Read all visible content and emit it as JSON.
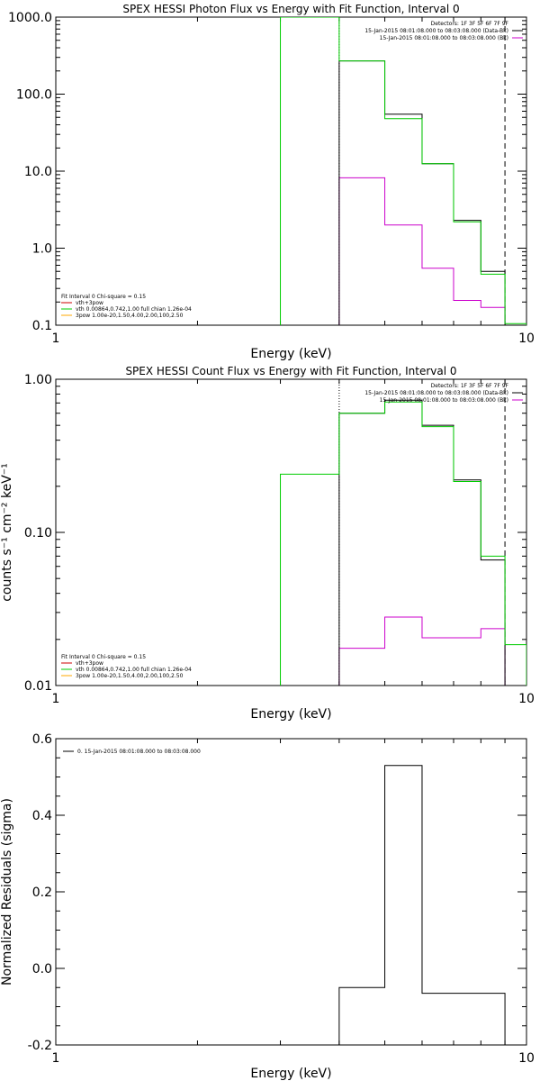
{
  "chart_data": [
    {
      "type": "line",
      "title": "SPEX HESSI Photon Flux vs Energy with Fit Function, Interval 0",
      "xlabel": "Energy (keV)",
      "ylabel": "",
      "x_scale": "log",
      "y_scale": "log",
      "xlim": [
        1,
        10
      ],
      "ylim": [
        0.1,
        1000
      ],
      "x_ticks": [
        {
          "value": 1,
          "label": "1"
        },
        {
          "value": 10,
          "label": "10"
        }
      ],
      "y_ticks": [
        {
          "value": 0.1,
          "label": "0.1"
        },
        {
          "value": 1,
          "label": "1.0"
        },
        {
          "value": 10,
          "label": "10.0"
        },
        {
          "value": 100,
          "label": "100.0"
        },
        {
          "value": 1000,
          "label": "1000.0"
        }
      ],
      "header": [
        "Detectors: 1F 3F 5F 6F 7F 9F",
        "15-Jan-2015 08:01:08.000 to 08:03:08.000 (Data-Bk)",
        "15-Jan-2015 08:01:08.000 to 08:03:08.000 (Bk)"
      ],
      "legend": [
        "Fit Interval 0   Chi-square = 0.15",
        "vth+3pow",
        "vth 0.00864,0.742,1.00   full chian 1.26e-04",
        "3pow 1.00e-20,1.50,4.00,2.00,100,2.50"
      ],
      "colors": {
        "data": "#000000",
        "background": "#cc00cc",
        "fit": "#00cc00",
        "component": "#ffaa00",
        "red": "#cc0000"
      },
      "edges": [
        3,
        4,
        5,
        6,
        7,
        8,
        9,
        10
      ],
      "series": [
        {
          "values": [
            null,
            270,
            55,
            12.5,
            2.3,
            0.5,
            null
          ]
        },
        {
          "values": [
            null,
            8.2,
            2.0,
            0.55,
            0.21,
            0.17,
            null
          ]
        },
        {
          "values": [
            1000,
            270,
            48,
            12.5,
            2.2,
            0.46,
            0.105
          ]
        }
      ],
      "vlines": [
        {
          "x": 4,
          "style": "dotted"
        },
        {
          "x": 9,
          "style": "dashed"
        }
      ]
    },
    {
      "type": "line",
      "title": "SPEX HESSI Count Flux vs Energy with Fit Function, Interval 0",
      "xlabel": "Energy (keV)",
      "ylabel": "counts s⁻¹ cm⁻² keV⁻¹",
      "x_scale": "log",
      "y_scale": "log",
      "xlim": [
        1,
        10
      ],
      "ylim": [
        0.01,
        1
      ],
      "x_ticks": [
        {
          "value": 1,
          "label": "1"
        },
        {
          "value": 10,
          "label": "10"
        }
      ],
      "y_ticks": [
        {
          "value": 0.01,
          "label": "0.01"
        },
        {
          "value": 0.1,
          "label": "0.10"
        },
        {
          "value": 1,
          "label": "1.00"
        }
      ],
      "header": [
        "Detectors: 1F 3F 5F 6F 7F 9F",
        "15-Jan-2015 08:01:08.000 to 08:03:08.000 (Data-Bk)",
        "15-Jan-2015 08:01:08.000 to 08:03:08.000 (Bk)"
      ],
      "legend": [
        "Fit Interval 0   Chi-square = 0.15",
        "vth+3pow",
        "vth 0.00864,0.742,1.00   full chian 1.26e-04",
        "3pow 1.00e-20,1.50,4.00,2.00,100,2.50"
      ],
      "colors": {
        "data": "#000000",
        "background": "#cc00cc",
        "fit": "#00cc00",
        "component": "#ffaa00",
        "red": "#cc0000"
      },
      "edges": [
        3,
        4,
        5,
        6,
        7,
        8,
        9,
        10
      ],
      "series": [
        {
          "values": [
            null,
            0.6,
            0.73,
            0.5,
            0.22,
            0.066,
            null
          ]
        },
        {
          "values": [
            null,
            0.0175,
            0.028,
            0.0205,
            0.0205,
            0.0235,
            null
          ]
        },
        {
          "values": [
            0.24,
            0.6,
            0.71,
            0.49,
            0.215,
            0.07,
            0.0185
          ]
        }
      ],
      "vlines": [
        {
          "x": 4,
          "style": "dotted"
        },
        {
          "x": 9,
          "style": "dashed"
        }
      ]
    },
    {
      "type": "line",
      "title": "",
      "xlabel": "Energy (keV)",
      "ylabel": "Normalized Residuals (sigma)",
      "x_scale": "log",
      "y_scale": "linear",
      "xlim": [
        1,
        10
      ],
      "ylim": [
        -0.2,
        0.6
      ],
      "x_ticks": [
        {
          "value": 1,
          "label": "1"
        },
        {
          "value": 10,
          "label": "10"
        }
      ],
      "y_ticks": [
        {
          "value": -0.2,
          "label": "-0.2"
        },
        {
          "value": 0.0,
          "label": "0.0"
        },
        {
          "value": 0.2,
          "label": "0.2"
        },
        {
          "value": 0.4,
          "label": "0.4"
        },
        {
          "value": 0.6,
          "label": "0.6"
        }
      ],
      "header": [],
      "legend": [
        "0. 15-Jan-2015 08:01:08.000 to 08:03:08.000"
      ],
      "colors": {
        "data": "#000000"
      },
      "edges": [
        4,
        5,
        6,
        9
      ],
      "series": [
        {
          "values": [
            -0.05,
            0.53,
            -0.065
          ]
        }
      ],
      "vlines": []
    }
  ]
}
